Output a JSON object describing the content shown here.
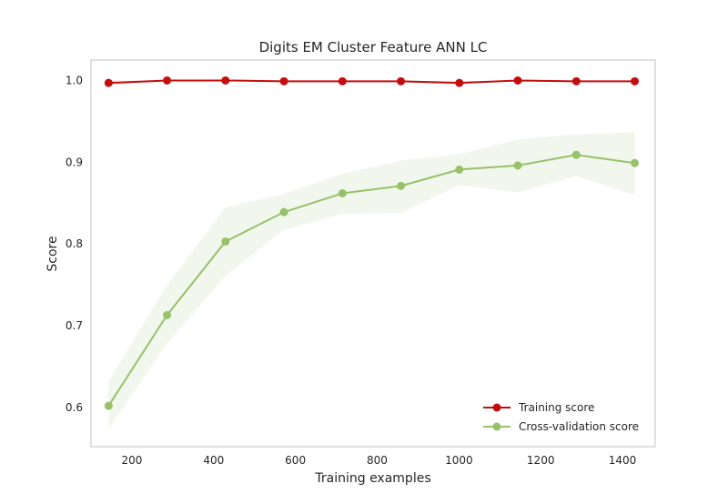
{
  "chart_data": {
    "type": "line",
    "title": "Digits EM Cluster Feature ANN LC",
    "xlabel": "Training examples",
    "ylabel": "Score",
    "xlim": [
      100,
      1480
    ],
    "ylim": [
      0.552,
      1.025
    ],
    "xticks": [
      200,
      400,
      600,
      800,
      1000,
      1200,
      1400
    ],
    "yticks": [
      0.6,
      0.7,
      0.8,
      0.9,
      1.0
    ],
    "xtick_labels": [
      "200",
      "400",
      "600",
      "800",
      "1000",
      "1200",
      "1400"
    ],
    "ytick_labels": [
      "0.6",
      "0.7",
      "0.8",
      "0.9",
      "1.0"
    ],
    "grid": false,
    "legend_position": "bottom-right",
    "x": [
      143,
      286,
      429,
      572,
      715,
      858,
      1001,
      1144,
      1287,
      1430
    ],
    "series": [
      {
        "name": "Training score",
        "color": "#c40d0d",
        "values": [
          0.997,
          1.0,
          1.0,
          0.999,
          0.999,
          0.999,
          0.997,
          1.0,
          0.999,
          0.999
        ],
        "band_low": [
          0.994,
          1.0,
          1.0,
          0.998,
          0.998,
          0.998,
          0.995,
          1.0,
          0.998,
          0.998
        ],
        "band_high": [
          1.0,
          1.0,
          1.0,
          1.0,
          1.0,
          1.0,
          0.999,
          1.0,
          1.0,
          1.0
        ]
      },
      {
        "name": "Cross-validation score",
        "color": "#97c16a",
        "values": [
          0.602,
          0.713,
          0.803,
          0.839,
          0.862,
          0.871,
          0.891,
          0.896,
          0.909,
          0.899
        ],
        "band_low": [
          0.574,
          0.678,
          0.761,
          0.817,
          0.837,
          0.838,
          0.872,
          0.863,
          0.883,
          0.86
        ],
        "band_high": [
          0.632,
          0.75,
          0.845,
          0.861,
          0.886,
          0.902,
          0.91,
          0.928,
          0.934,
          0.937
        ]
      }
    ]
  }
}
